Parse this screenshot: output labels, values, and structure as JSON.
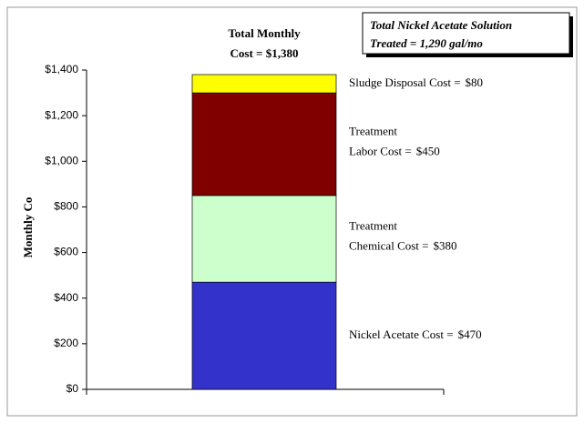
{
  "chart_data": {
    "type": "stacked-bar",
    "title": [
      "Total Monthly",
      "Cost = $1,380"
    ],
    "annotation": [
      "Total Nickel Acetate Solution",
      "Treated = 1,290 gal/mo"
    ],
    "y_label": "Monthly Co",
    "categories": [
      null
    ],
    "series": [
      {
        "name": [
          "Nickel Acetate Cost ="
        ],
        "color": "#3333cc",
        "values": [
          470
        ],
        "value_labels": [
          "$470"
        ]
      },
      {
        "name": [
          "Treatment",
          "Chemical Cost ="
        ],
        "color": "#ccffcc",
        "values": [
          380
        ],
        "value_labels": [
          "$380"
        ]
      },
      {
        "name": [
          "Treatment",
          "Labor Cost ="
        ],
        "color": "#800000",
        "values": [
          450
        ],
        "value_labels": [
          "$450"
        ]
      },
      {
        "name": [
          "Sludge Disposal Cost ="
        ],
        "color": "#ffff00",
        "values": [
          80
        ],
        "value_labels": [
          "$80"
        ]
      }
    ],
    "ylim": [
      0,
      1400
    ],
    "yticks": [
      {
        "value": 0,
        "label": "$0"
      },
      {
        "value": 200,
        "label": "$200"
      },
      {
        "value": 400,
        "label": "$400"
      },
      {
        "value": 600,
        "label": "$600"
      },
      {
        "value": 800,
        "label": "$800"
      },
      {
        "value": 1000,
        "label": "$1,000"
      },
      {
        "value": 1200,
        "label": "$1,200"
      },
      {
        "value": 1400,
        "label": "$1,400"
      }
    ],
    "grid": false
  }
}
